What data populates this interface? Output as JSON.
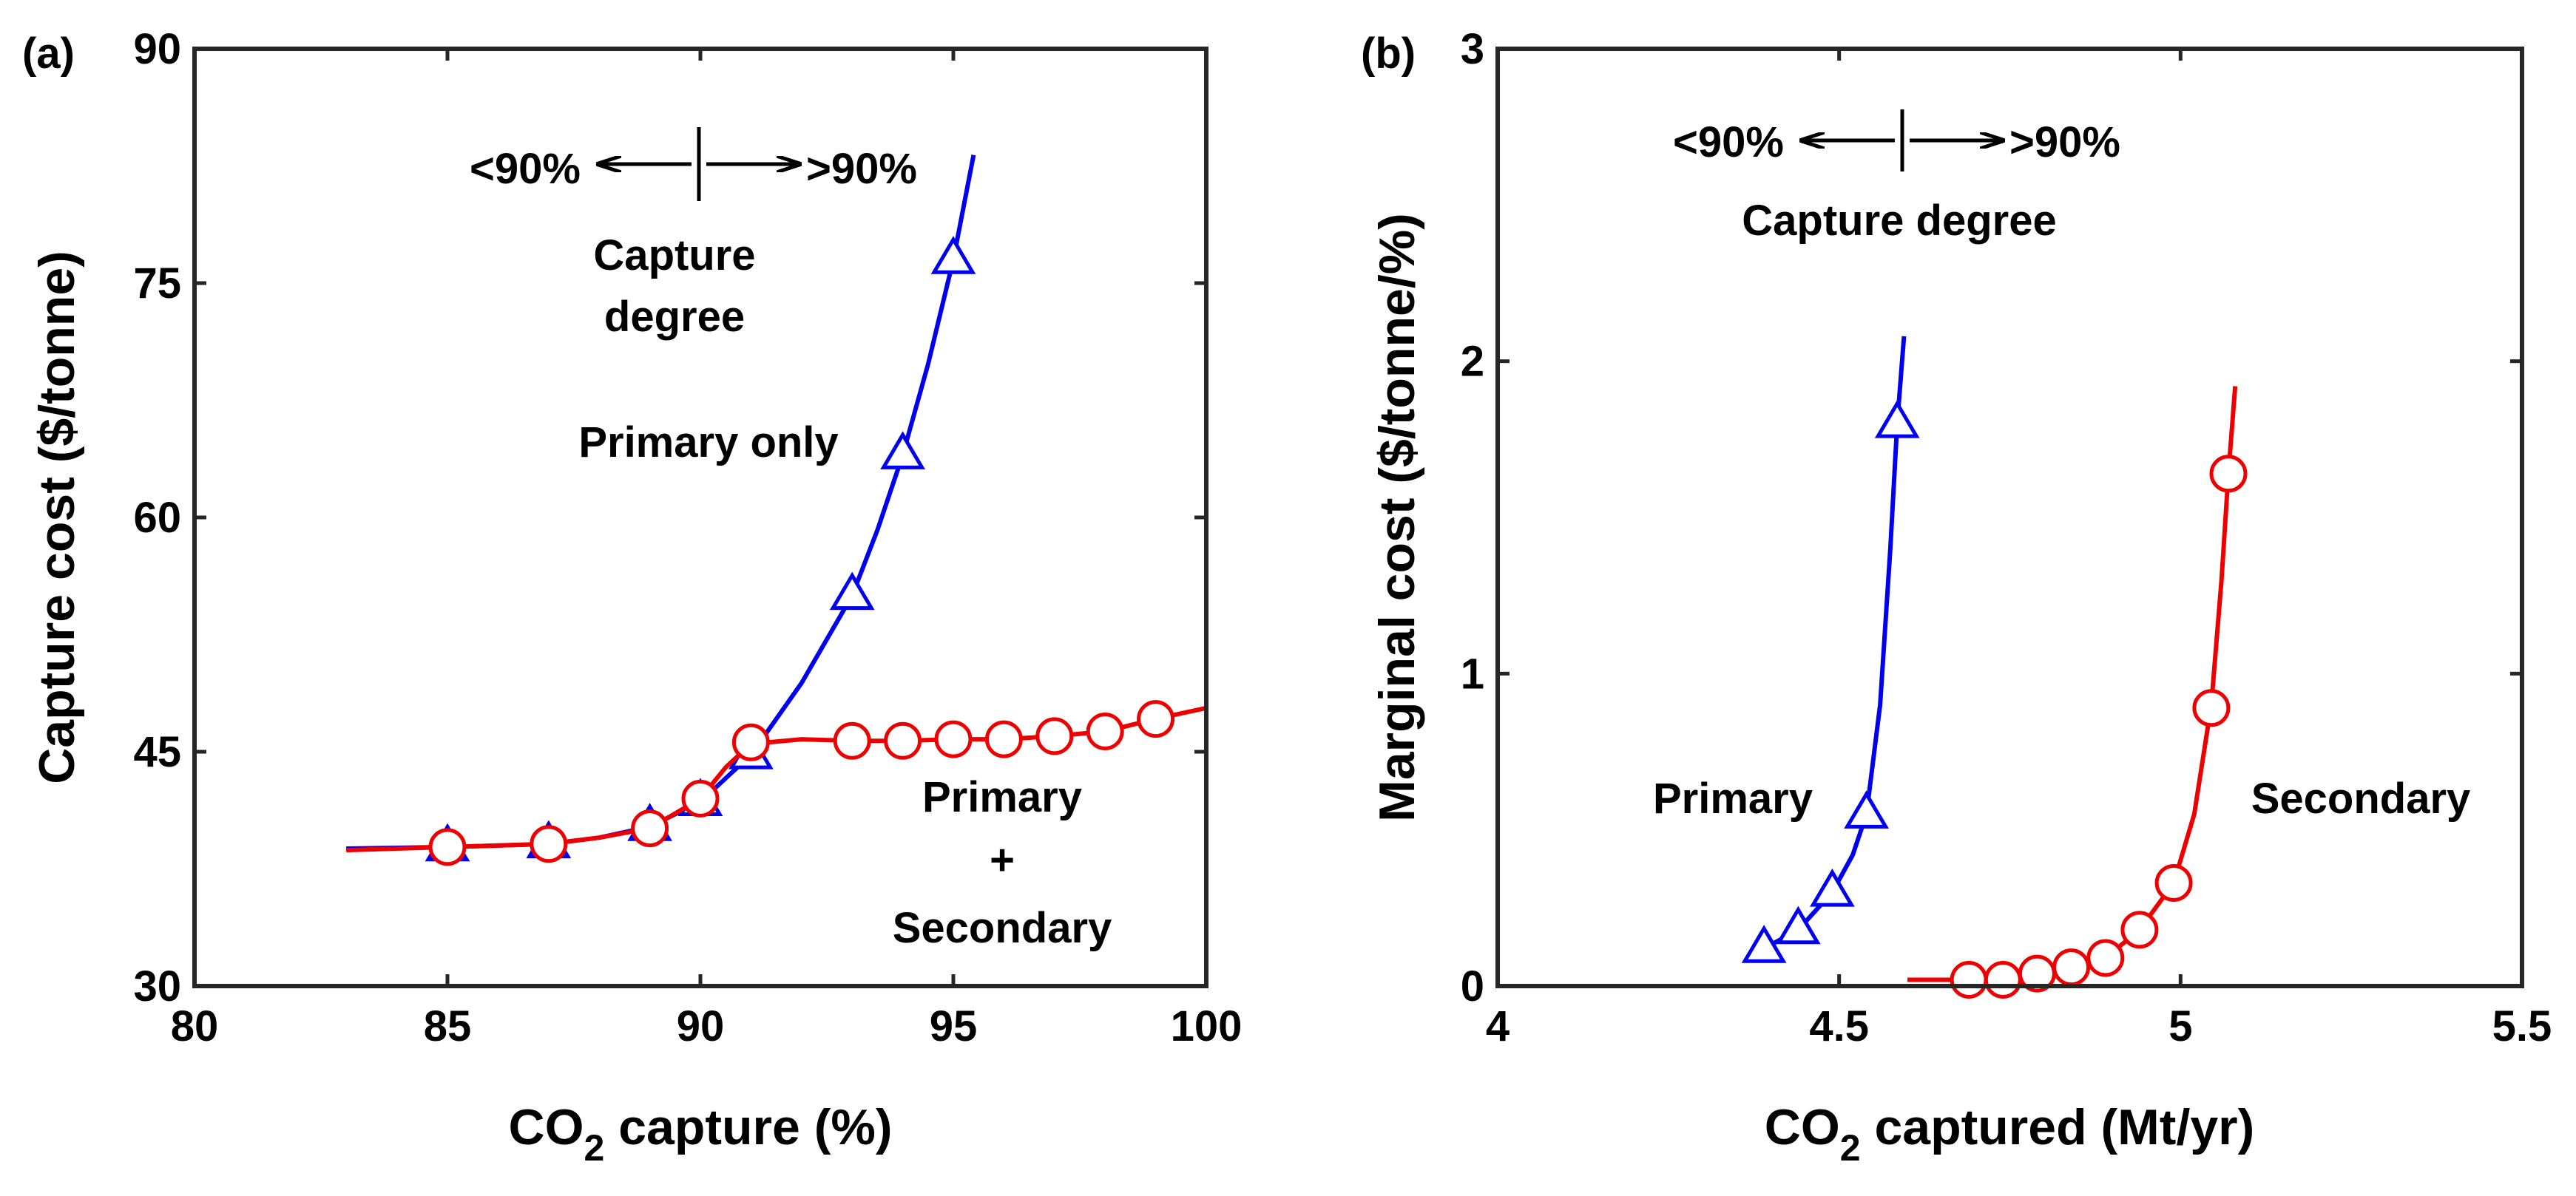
{
  "chart_data": [
    {
      "panel": "(a)",
      "type": "line",
      "xlabel": "CO",
      "xlabel_sub": "2",
      "xlabel_rest": " capture (%)",
      "ylabel": "Capture cost ($/tonne)",
      "xlim": [
        80,
        100
      ],
      "ylim": [
        30,
        90
      ],
      "xticks": [
        80,
        85,
        90,
        95,
        100
      ],
      "yticks": [
        30,
        45,
        60,
        75,
        90
      ],
      "grid": false,
      "series": [
        {
          "name": "Primary only",
          "color": "#0000ee",
          "marker": "triangle",
          "curve": [
            [
              83,
              38.8
            ],
            [
              85,
              38.9
            ],
            [
              87,
              39.1
            ],
            [
              88,
              39.5
            ],
            [
              89,
              40.2
            ],
            [
              90,
              41.8
            ],
            [
              91,
              44.8
            ],
            [
              92,
              49.4
            ],
            [
              93,
              55.0
            ],
            [
              93.5,
              59.2
            ],
            [
              94,
              64.0
            ],
            [
              94.5,
              69.8
            ],
            [
              95,
              76.5
            ],
            [
              95.4,
              83.2
            ]
          ],
          "points": [
            [
              85,
              38.9
            ],
            [
              87,
              39.1
            ],
            [
              89,
              40.2
            ],
            [
              90,
              41.8
            ],
            [
              91,
              44.8
            ],
            [
              93,
              55.0
            ],
            [
              94,
              64.0
            ],
            [
              95,
              76.5
            ]
          ]
        },
        {
          "name": "Primary + Secondary",
          "color": "#ee0000",
          "marker": "circle",
          "curve": [
            [
              83,
              38.7
            ],
            [
              85,
              38.9
            ],
            [
              87,
              39.1
            ],
            [
              88,
              39.5
            ],
            [
              89,
              40.1
            ],
            [
              90,
              42.0
            ],
            [
              90.5,
              44.0
            ],
            [
              91,
              45.5
            ],
            [
              92,
              45.8
            ],
            [
              93,
              45.7
            ],
            [
              94,
              45.7
            ],
            [
              95,
              45.8
            ],
            [
              96,
              45.8
            ],
            [
              97,
              46.0
            ],
            [
              98,
              46.3
            ],
            [
              99,
              47.1
            ],
            [
              100,
              47.8
            ]
          ],
          "points": [
            [
              85,
              38.9
            ],
            [
              87,
              39.1
            ],
            [
              89,
              40.1
            ],
            [
              90,
              42.0
            ],
            [
              91,
              45.6
            ],
            [
              93,
              45.7
            ],
            [
              94,
              45.7
            ],
            [
              95,
              45.8
            ],
            [
              96,
              45.8
            ],
            [
              97,
              46.0
            ],
            [
              98,
              46.3
            ],
            [
              99,
              47.1
            ]
          ]
        }
      ],
      "annotations": {
        "left_label": "<90%",
        "right_label": ">90%",
        "capture_line1": "Capture",
        "capture_line2": "degree",
        "primary_only": "Primary only",
        "combo_line1": "Primary",
        "combo_line2": "+",
        "combo_line3": "Secondary"
      }
    },
    {
      "panel": "(b)",
      "type": "line",
      "xlabel": "CO",
      "xlabel_sub": "2",
      "xlabel_rest": " captured (Mt/yr)",
      "ylabel": "Marginal cost ($/tonne/%)",
      "xlim": [
        4,
        5.5
      ],
      "ylim": [
        0,
        3
      ],
      "xticks": [
        4,
        4.5,
        5,
        5.5
      ],
      "yticks": [
        0,
        1,
        2,
        3
      ],
      "grid": false,
      "series": [
        {
          "name": "Primary",
          "color": "#0000ee",
          "marker": "triangle",
          "curve": [
            [
              4.37,
              0.1
            ],
            [
              4.39,
              0.12
            ],
            [
              4.44,
              0.18
            ],
            [
              4.49,
              0.3
            ],
            [
              4.52,
              0.42
            ],
            [
              4.54,
              0.55
            ],
            [
              4.56,
              0.9
            ],
            [
              4.575,
              1.4
            ],
            [
              4.585,
              1.8
            ],
            [
              4.595,
              2.08
            ]
          ],
          "points": [
            [
              4.39,
              0.12
            ],
            [
              4.44,
              0.18
            ],
            [
              4.49,
              0.3
            ],
            [
              4.54,
              0.55
            ],
            [
              4.585,
              1.8
            ]
          ]
        },
        {
          "name": "Secondary",
          "color": "#ee0000",
          "marker": "circle",
          "curve": [
            [
              4.6,
              0.02
            ],
            [
              4.69,
              0.02
            ],
            [
              4.74,
              0.02
            ],
            [
              4.79,
              0.04
            ],
            [
              4.84,
              0.06
            ],
            [
              4.89,
              0.09
            ],
            [
              4.94,
              0.18
            ],
            [
              4.99,
              0.33
            ],
            [
              5.02,
              0.55
            ],
            [
              5.045,
              0.9
            ],
            [
              5.06,
              1.3
            ],
            [
              5.07,
              1.64
            ],
            [
              5.08,
              1.92
            ]
          ],
          "points": [
            [
              4.69,
              0.02
            ],
            [
              4.74,
              0.02
            ],
            [
              4.79,
              0.04
            ],
            [
              4.84,
              0.06
            ],
            [
              4.89,
              0.09
            ],
            [
              4.94,
              0.18
            ],
            [
              4.99,
              0.33
            ],
            [
              5.045,
              0.89
            ],
            [
              5.07,
              1.64
            ]
          ]
        }
      ],
      "annotations": {
        "left_label": "<90%",
        "right_label": ">90%",
        "capture_degree": "Capture degree",
        "primary": "Primary",
        "secondary": "Secondary"
      }
    }
  ]
}
